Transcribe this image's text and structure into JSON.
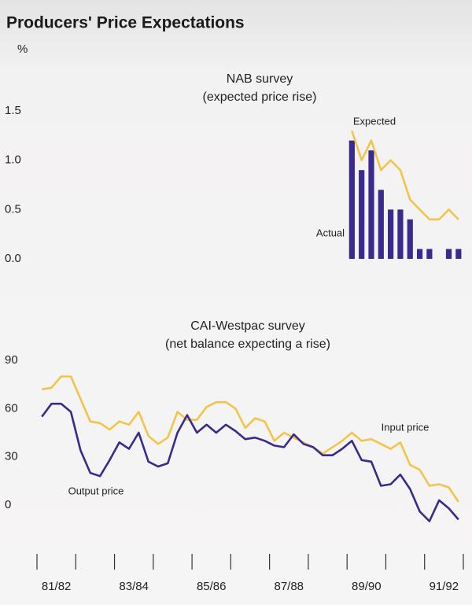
{
  "title": "Producers' Price Expectations",
  "unit": "%",
  "chart_data": [
    {
      "type": "combo",
      "title": "NAB survey",
      "subtitle": "(expected price rise)",
      "x": [
        1989.625,
        1989.875,
        1990.125,
        1990.375,
        1990.625,
        1990.875,
        1991.125,
        1991.375,
        1991.625,
        1991.875,
        1992.125,
        1992.375
      ],
      "series": [
        {
          "name": "Actual",
          "type": "bar",
          "color": "#3b2a8e",
          "values": [
            1.2,
            0.9,
            1.1,
            0.7,
            0.5,
            0.5,
            0.4,
            0.1,
            0.1,
            null,
            0.1,
            0.1
          ]
        },
        {
          "name": "Expected",
          "type": "line",
          "color": "#f2c54a",
          "values": [
            1.3,
            1.0,
            1.2,
            0.9,
            1.0,
            0.9,
            0.6,
            0.5,
            0.4,
            0.4,
            0.5,
            0.4
          ]
        }
      ],
      "xlim": [
        1981.5,
        1992.5
      ],
      "ylim": [
        0,
        1.6
      ],
      "yticks": [
        {
          "value": 0,
          "label": "0.0"
        },
        0.5,
        {
          "value": 1,
          "label": "1.0"
        },
        1.5
      ]
    },
    {
      "type": "line",
      "title": "CAI-Westpac survey",
      "subtitle": "(net balance expecting a rise)",
      "x": [
        1981.625,
        1981.875,
        1982.125,
        1982.375,
        1982.625,
        1982.875,
        1983.125,
        1983.375,
        1983.625,
        1983.875,
        1984.125,
        1984.375,
        1984.625,
        1984.875,
        1985.125,
        1985.375,
        1985.625,
        1985.875,
        1986.125,
        1986.375,
        1986.625,
        1986.875,
        1987.125,
        1987.375,
        1987.625,
        1987.875,
        1988.125,
        1988.375,
        1988.625,
        1988.875,
        1989.125,
        1989.375,
        1989.625,
        1989.875,
        1990.125,
        1990.375,
        1990.625,
        1990.875,
        1991.125,
        1991.375,
        1991.625,
        1991.875,
        1992.125,
        1992.375
      ],
      "series": [
        {
          "name": "Input price",
          "color": "#f2c54a",
          "values": [
            72,
            73,
            80,
            80,
            66,
            52,
            51,
            47,
            52,
            50,
            58,
            43,
            38,
            42,
            58,
            53,
            53,
            61,
            64,
            64,
            60,
            48,
            54,
            52,
            40,
            45,
            42,
            39,
            36,
            32,
            36,
            40,
            45,
            40,
            41,
            38,
            35,
            39,
            25,
            22,
            12,
            13,
            11,
            2
          ]
        },
        {
          "name": "Output price",
          "color": "#3b2a8e",
          "values": [
            55,
            63,
            63,
            58,
            34,
            20,
            18,
            28,
            39,
            35,
            45,
            27,
            24,
            26,
            45,
            56,
            45,
            50,
            45,
            50,
            46,
            41,
            42,
            40,
            37,
            36,
            44,
            38,
            36,
            31,
            31,
            35,
            40,
            28,
            27,
            12,
            13,
            19,
            10,
            -4,
            -10,
            3,
            -2,
            -9
          ]
        }
      ],
      "xlim": [
        1981.5,
        1992.5
      ],
      "ylim": [
        -15,
        100
      ],
      "yticks": [
        0,
        30,
        60,
        90
      ],
      "xticks": [
        1981.5,
        1982.5,
        1983.5,
        1984.5,
        1985.5,
        1986.5,
        1987.5,
        1988.5,
        1989.5,
        1990.5,
        1991.5,
        1992.5
      ],
      "xlabels": [
        {
          "value": 1982,
          "label": "81/82"
        },
        {
          "value": 1984,
          "label": "83/84"
        },
        {
          "value": 1986,
          "label": "85/86"
        },
        {
          "value": 1988,
          "label": "87/88"
        },
        {
          "value": 1990,
          "label": "89/90"
        },
        {
          "value": 1992,
          "label": "91/92"
        }
      ]
    }
  ]
}
